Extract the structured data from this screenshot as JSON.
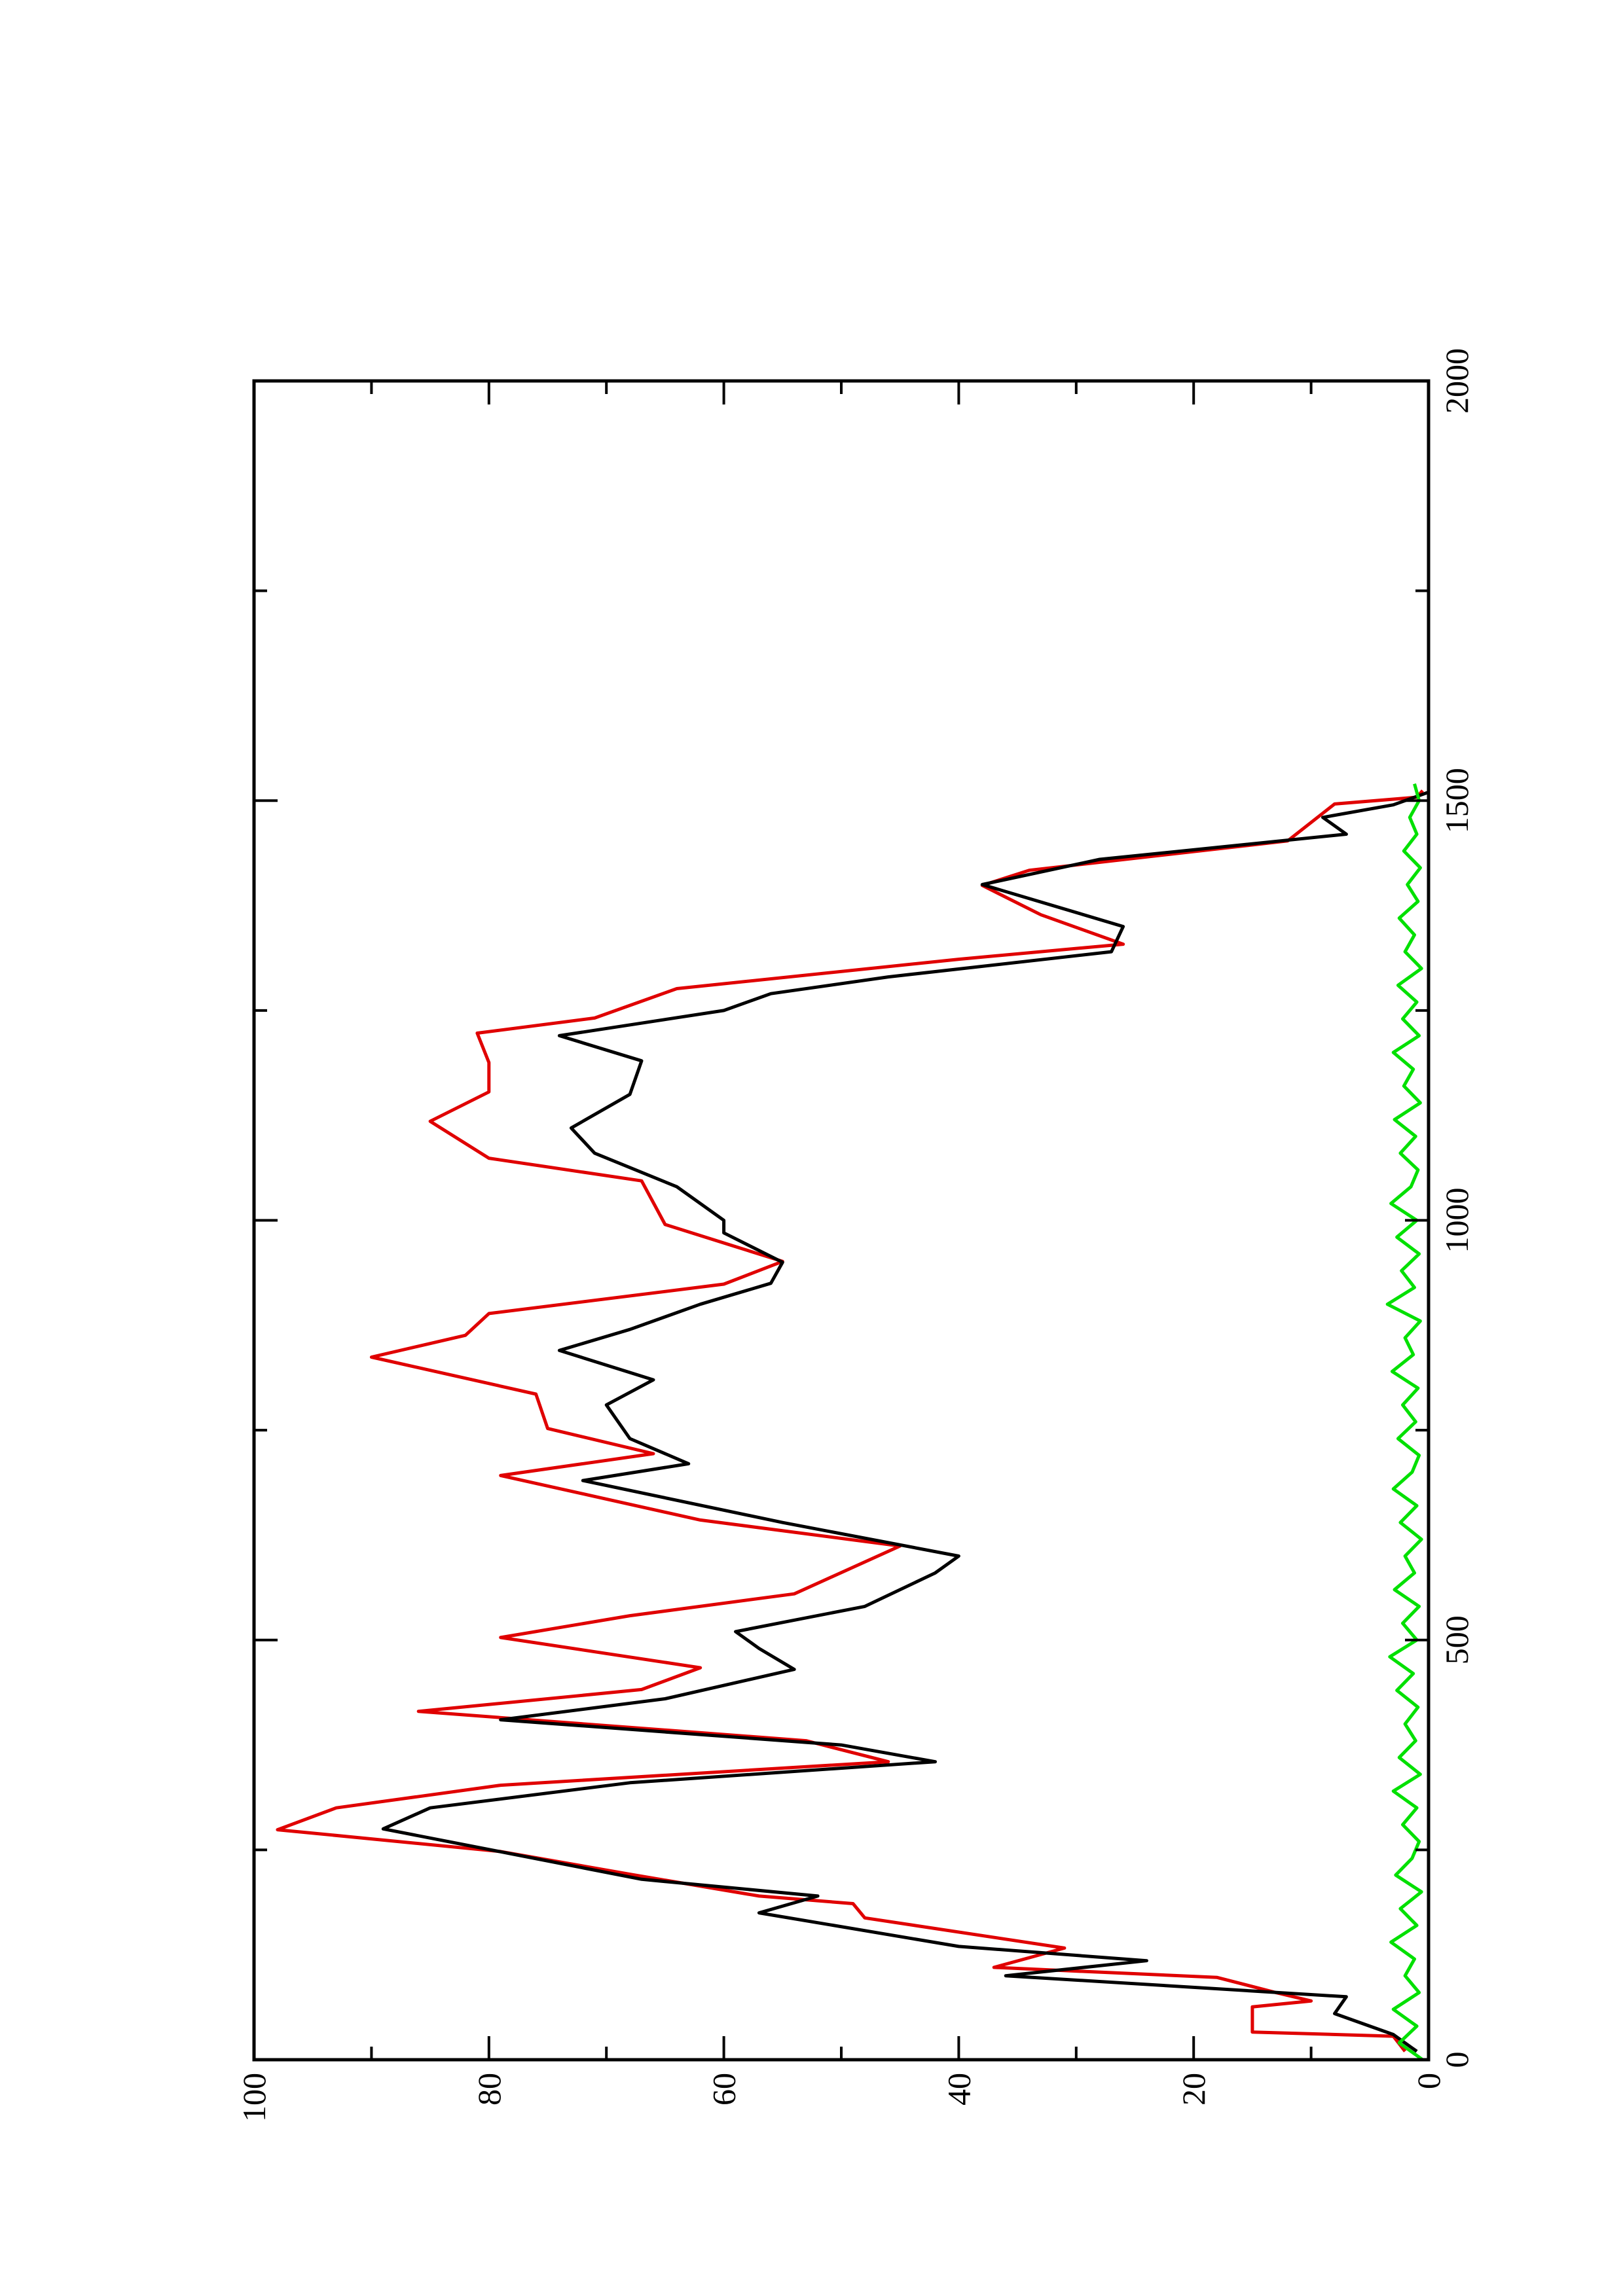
{
  "chart_data": {
    "type": "line",
    "xlim": [
      0,
      2000
    ],
    "xticks": [
      0,
      500,
      1000,
      1500,
      2000
    ],
    "xminor_ticks": [
      250,
      750,
      1250,
      1750
    ],
    "ylim": [
      0,
      100
    ],
    "yticks": [
      0,
      20,
      40,
      60,
      80,
      100
    ],
    "yminor_ticks": [
      10,
      30,
      50,
      70,
      90
    ],
    "rotated": true,
    "series": [
      {
        "color": "#e00000",
        "x": [
          10,
          28,
          33,
          63,
          70,
          80,
          98,
          110,
          133,
          169,
          186,
          195,
          221,
          248,
          274,
          300,
          327,
          355,
          380,
          415,
          441,
          467,
          503,
          529,
          555,
          612,
          643,
          696,
          722,
          752,
          793,
          837,
          863,
          889,
          924,
          951,
          995,
          1047,
          1074,
          1118,
          1153,
          1188,
          1223,
          1241,
          1276,
          1311,
          1329,
          1364,
          1399,
          1417,
          1452,
          1496,
          1504,
          1512
        ],
        "values": [
          2,
          3,
          15,
          15,
          10,
          13,
          18,
          37,
          31,
          48,
          49,
          57,
          68,
          79,
          98,
          93,
          79,
          46,
          53,
          86,
          67,
          62,
          79,
          68,
          54,
          45,
          62,
          79,
          66,
          75,
          76,
          90,
          82,
          80,
          60,
          55,
          65,
          67,
          80,
          85,
          80,
          80,
          81,
          71,
          64,
          40,
          26,
          33,
          38,
          34,
          12,
          8,
          1,
          0.5
        ]
      },
      {
        "color": "#000000",
        "x": [
          10,
          30,
          55,
          75,
          100,
          118,
          135,
          175,
          195,
          215,
          245,
          275,
          300,
          330,
          355,
          375,
          405,
          430,
          465,
          490,
          510,
          540,
          580,
          600,
          640,
          690,
          710,
          740,
          780,
          810,
          845,
          870,
          900,
          925,
          950,
          985,
          1000,
          1040,
          1080,
          1110,
          1150,
          1190,
          1220,
          1250,
          1270,
          1290,
          1320,
          1350,
          1400,
          1430,
          1460,
          1480,
          1495,
          1510
        ],
        "values": [
          1,
          3,
          8,
          7,
          36,
          24,
          40,
          57,
          52,
          67,
          78,
          89,
          85,
          68,
          42,
          50,
          79,
          65,
          54,
          57,
          59,
          48,
          42,
          40,
          55,
          72,
          63,
          68,
          70,
          66,
          74,
          68,
          62,
          56,
          55,
          60,
          60,
          64,
          71,
          73,
          68,
          67,
          74,
          60,
          56,
          46,
          27,
          26,
          38,
          28,
          7,
          9,
          3,
          0
        ]
      },
      {
        "color": "#00e000",
        "x": [
          0,
          20,
          40,
          60,
          80,
          100,
          120,
          140,
          160,
          180,
          200,
          220,
          240,
          260,
          280,
          300,
          320,
          340,
          360,
          380,
          400,
          420,
          440,
          460,
          480,
          500,
          520,
          540,
          560,
          580,
          600,
          620,
          640,
          660,
          680,
          700,
          720,
          740,
          760,
          780,
          800,
          820,
          840,
          860,
          880,
          900,
          920,
          940,
          960,
          980,
          1000,
          1020,
          1040,
          1060,
          1080,
          1100,
          1120,
          1140,
          1160,
          1180,
          1200,
          1220,
          1240,
          1260,
          1280,
          1300,
          1320,
          1340,
          1360,
          1380,
          1400,
          1420,
          1440,
          1460,
          1480,
          1500,
          1520
        ],
        "values": [
          0.5,
          2.5,
          1,
          3,
          0.8,
          2,
          1.2,
          3.2,
          1,
          2.4,
          0.6,
          2.8,
          1.4,
          0.8,
          2.2,
          1,
          3,
          0.7,
          2.5,
          1.1,
          2,
          0.9,
          2.7,
          1.3,
          3.3,
          1,
          2.2,
          0.8,
          2.9,
          1.2,
          2,
          0.6,
          2.4,
          1,
          3,
          1.4,
          0.8,
          2.6,
          1.1,
          2.2,
          0.9,
          3.1,
          1.3,
          2,
          0.7,
          3.5,
          1.2,
          2.3,
          0.8,
          2.7,
          1,
          3.2,
          1.5,
          0.9,
          2.4,
          1.1,
          2.9,
          0.7,
          2.1,
          1.3,
          3,
          0.8,
          2.2,
          1,
          2.6,
          0.6,
          2,
          1.2,
          2.5,
          0.9,
          1.8,
          0.7,
          2.1,
          1,
          1.6,
          0.8,
          1.2
        ]
      }
    ]
  }
}
